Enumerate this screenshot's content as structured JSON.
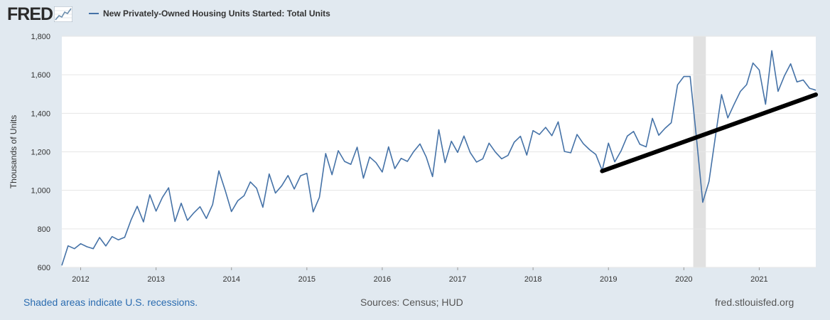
{
  "header": {
    "logo_text": "FRED",
    "logo_chart_icon": "fred-sparkline-icon"
  },
  "colors": {
    "background": "#e1e9f0",
    "plot_bg": "#ffffff",
    "series_line": "#4572a7",
    "trend_line": "#000000",
    "recession_shade": "#e1e1e1",
    "link": "#2b6cb0"
  },
  "footer": {
    "recession_note": "Shaded areas indicate U.S. recessions.",
    "sources": "Sources: Census; HUD",
    "site": "fred.stlouisfed.org"
  },
  "chart_data": {
    "type": "line",
    "title": "",
    "xlabel": "",
    "ylabel": "Thousands of Units",
    "ylim": [
      600,
      1800
    ],
    "yticks": [
      "600",
      "800",
      "1,000",
      "1,200",
      "1,400",
      "1,600",
      "1,800"
    ],
    "xticks": [
      "2012",
      "2013",
      "2014",
      "2015",
      "2016",
      "2017",
      "2018",
      "2019",
      "2020",
      "2021"
    ],
    "xlim": [
      "2011-10",
      "2021-10"
    ],
    "grid": "horizontal",
    "legend_position": "top-left",
    "recessions": [
      {
        "start": "2020-02",
        "end": "2020-04"
      }
    ],
    "series": [
      {
        "name": "New Privately-Owned Housing Units Started: Total Units",
        "start": "2011-10",
        "frequency": "monthly",
        "values": [
          610,
          712,
          697,
          723,
          707,
          697,
          755,
          711,
          760,
          743,
          756,
          845,
          917,
          836,
          977,
          892,
          963,
          1013,
          838,
          933,
          844,
          883,
          915,
          854,
          926,
          1101,
          1000,
          890,
          946,
          972,
          1044,
          1011,
          912,
          1085,
          986,
          1024,
          1077,
          1007,
          1076,
          1088,
          888,
          964,
          1191,
          1081,
          1206,
          1150,
          1135,
          1224,
          1063,
          1173,
          1144,
          1095,
          1226,
          1113,
          1166,
          1150,
          1201,
          1241,
          1173,
          1071,
          1315,
          1144,
          1255,
          1197,
          1282,
          1196,
          1147,
          1164,
          1245,
          1199,
          1164,
          1181,
          1250,
          1281,
          1183,
          1310,
          1290,
          1327,
          1284,
          1356,
          1202,
          1195,
          1290,
          1242,
          1211,
          1186,
          1103,
          1245,
          1148,
          1204,
          1282,
          1306,
          1239,
          1226,
          1374,
          1286,
          1322,
          1351,
          1548,
          1591,
          1591,
          1276,
          938,
          1046,
          1273,
          1497,
          1376,
          1447,
          1514,
          1549,
          1661,
          1625,
          1447,
          1725,
          1514,
          1594,
          1657,
          1563,
          1573,
          1530,
          1520
        ]
      }
    ],
    "trend_line": {
      "from": {
        "date": "2018-12",
        "value": 1100
      },
      "to": {
        "date": "2021-10",
        "value": 1497
      }
    }
  }
}
